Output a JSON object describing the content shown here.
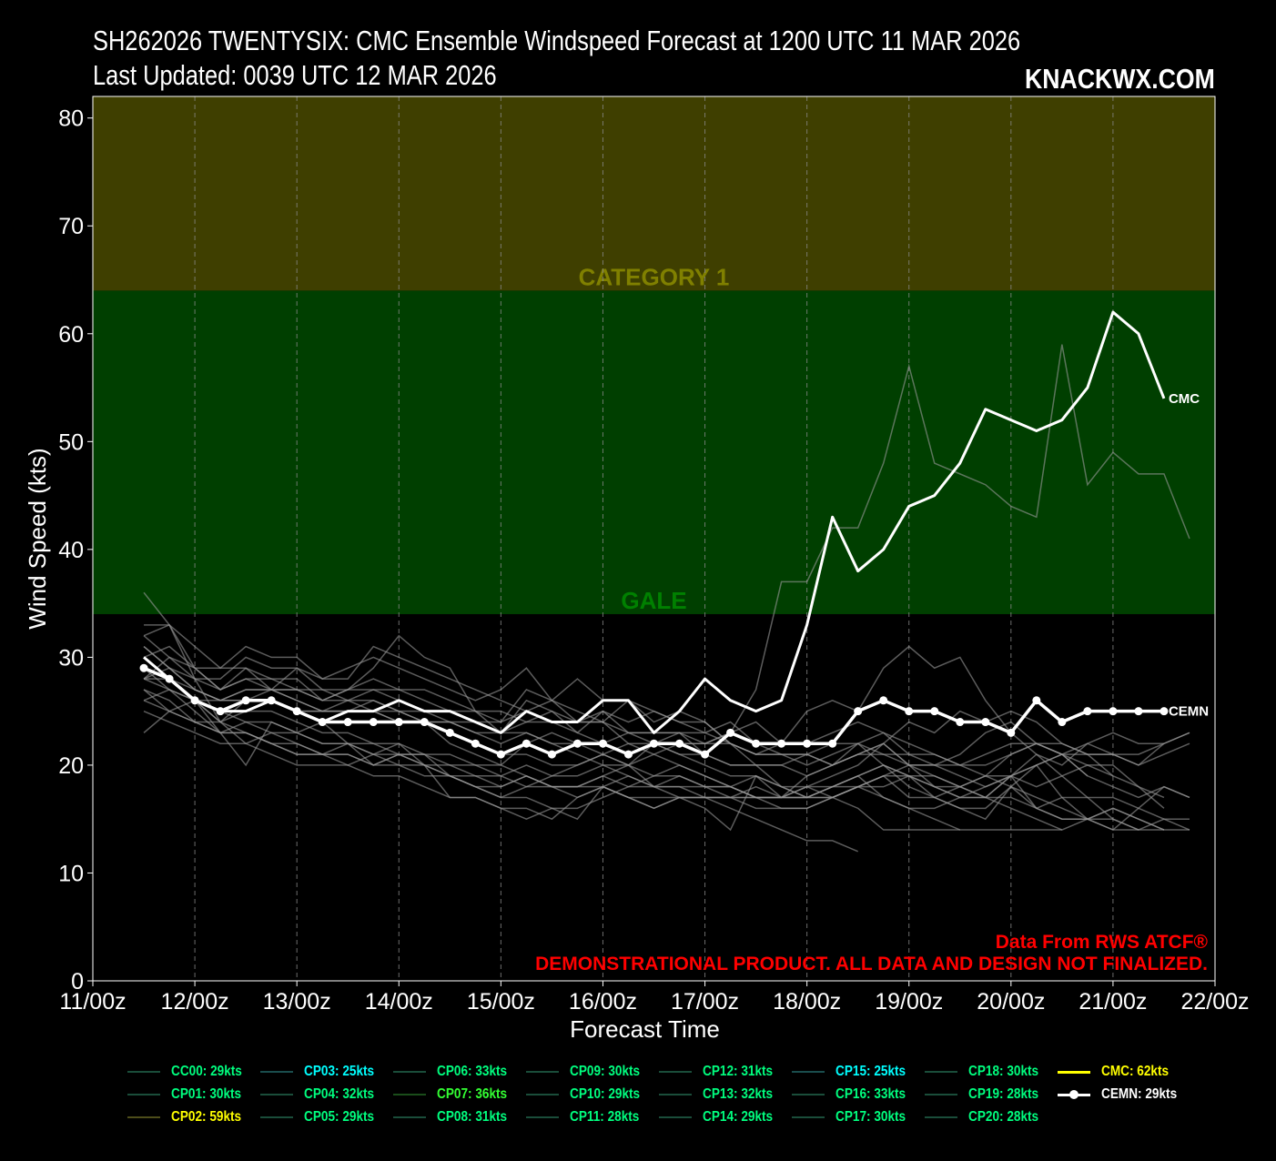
{
  "header": {
    "title_line1": "SH262026 TWENTYSIX: CMC Ensemble Windspeed Forecast at 1200 UTC 11 MAR 2026",
    "title_line2": "Last Updated: 0039 UTC 12 MAR 2026",
    "brand": "KNACKWX.COM"
  },
  "notes": {
    "source": "Data From RWS ATCF®",
    "disclaimer": "DEMONSTRATIONAL PRODUCT. ALL DATA AND DESIGN NOT FINALIZED."
  },
  "chart_data": {
    "type": "line",
    "xlabel": "Forecast Time",
    "ylabel": "Wind Speed (kts)",
    "x_ticks": [
      "11/00z",
      "12/00z",
      "13/00z",
      "14/00z",
      "15/00z",
      "16/00z",
      "17/00z",
      "18/00z",
      "19/00z",
      "20/00z",
      "21/00z",
      "22/00z"
    ],
    "xlim_hours": [
      0,
      264
    ],
    "ylim": [
      0,
      82
    ],
    "y_ticks": [
      0,
      10,
      20,
      30,
      40,
      50,
      60,
      70,
      80
    ],
    "grid": "vertical dashed",
    "bands": [
      {
        "name": "GALE",
        "from": 34,
        "to": 64,
        "color": "#003f00",
        "label_color": "#008000"
      },
      {
        "name": "CATEGORY 1",
        "from": 64,
        "to": 82,
        "color": "#3f3f00",
        "label_color": "#808000"
      }
    ],
    "x_hours": [
      12,
      18,
      24,
      30,
      36,
      42,
      48,
      54,
      60,
      66,
      72,
      78,
      84,
      90,
      96,
      102,
      108,
      114,
      120,
      126,
      132,
      138,
      144,
      150,
      156,
      162,
      168,
      174,
      180,
      186,
      192,
      198,
      204,
      210,
      216,
      222,
      228,
      234,
      240,
      246,
      252,
      258
    ],
    "main_series": [
      {
        "name": "CMC",
        "end_label": "CMC",
        "color": "#ffffff",
        "values": [
          30,
          28,
          26,
          25,
          25,
          26,
          25,
          24,
          25,
          25,
          26,
          25,
          25,
          24,
          23,
          25,
          24,
          24,
          26,
          26,
          23,
          25,
          28,
          26,
          25,
          26,
          33,
          43,
          38,
          40,
          44,
          45,
          48,
          53,
          52,
          51,
          52,
          55,
          62,
          60,
          54
        ]
      },
      {
        "name": "CEMN",
        "end_label": "CEMN",
        "color": "#ffffff",
        "markers": true,
        "values": [
          29,
          28,
          26,
          25,
          26,
          26,
          25,
          24,
          24,
          24,
          24,
          24,
          23,
          22,
          21,
          22,
          21,
          22,
          22,
          21,
          22,
          22,
          21,
          23,
          22,
          22,
          22,
          22,
          25,
          26,
          25,
          25,
          24,
          24,
          23,
          26,
          24,
          25,
          25,
          25,
          25
        ]
      }
    ],
    "member_series": [
      {
        "name": "m1",
        "values": [
          36,
          33,
          28,
          27,
          29,
          28,
          28,
          26,
          27,
          27,
          26,
          25,
          25,
          24,
          24,
          25,
          26,
          24,
          24,
          26,
          25,
          24,
          23,
          22,
          21,
          22,
          25,
          26,
          25,
          29,
          31,
          29,
          30,
          26,
          23,
          21,
          20,
          22,
          21,
          20,
          22,
          23
        ]
      },
      {
        "name": "m2",
        "values": [
          33,
          33,
          29,
          27,
          28,
          27,
          27,
          26,
          27,
          28,
          27,
          26,
          25,
          25,
          23,
          26,
          25,
          24,
          25,
          23,
          22,
          23,
          21,
          20,
          20,
          18,
          18,
          19,
          20,
          22,
          24,
          23,
          25,
          24,
          25,
          24,
          22,
          21,
          19
        ]
      },
      {
        "name": "m3",
        "values": [
          32,
          30,
          28,
          28,
          30,
          29,
          29,
          28,
          28,
          31,
          30,
          29,
          28,
          27,
          26,
          25,
          24,
          24,
          24,
          22,
          21,
          22,
          22,
          23,
          24,
          22,
          22,
          23,
          24,
          23,
          22,
          21,
          20,
          19,
          18,
          20,
          21,
          19,
          18,
          17,
          18,
          17
        ]
      },
      {
        "name": "m4",
        "values": [
          31,
          29,
          27,
          26,
          27,
          27,
          26,
          25,
          26,
          26,
          25,
          24,
          23,
          22,
          21,
          21,
          20,
          20,
          21,
          20,
          21,
          20,
          19,
          18,
          19,
          18,
          17,
          17,
          18,
          18,
          19,
          18,
          17,
          17,
          19,
          21,
          19,
          17,
          15,
          14,
          14
        ]
      },
      {
        "name": "m5",
        "values": [
          30,
          28,
          26,
          24,
          25,
          25,
          24,
          23,
          23,
          22,
          22,
          21,
          21,
          20,
          19,
          20,
          19,
          19,
          20,
          19,
          18,
          19,
          18,
          18,
          17,
          17,
          17,
          18,
          19,
          20,
          18,
          17,
          16,
          16,
          18,
          17,
          16,
          15,
          15,
          14
        ]
      },
      {
        "name": "m6",
        "values": [
          29,
          27,
          25,
          23,
          24,
          23,
          23,
          22,
          22,
          21,
          21,
          20,
          20,
          19,
          19,
          18,
          18,
          18,
          18,
          17,
          17,
          17,
          17,
          16,
          15,
          14,
          13,
          13,
          12
        ]
      },
      {
        "name": "m7",
        "values": [
          28,
          27,
          26,
          25,
          24,
          24,
          23,
          22,
          22,
          22,
          21,
          21,
          20,
          20,
          20,
          19,
          18,
          18,
          19,
          18,
          18,
          17,
          17,
          17,
          16,
          16,
          16,
          17,
          18,
          19,
          17,
          17,
          18,
          19,
          21,
          22,
          21,
          19
        ]
      },
      {
        "name": "m8",
        "values": [
          27,
          26,
          24,
          23,
          23,
          22,
          21,
          21,
          20,
          21,
          20,
          20,
          19,
          18,
          17,
          18,
          19,
          20,
          21,
          22,
          22,
          21,
          20,
          19,
          19,
          18,
          17,
          17,
          16,
          14,
          14,
          14,
          14
        ]
      },
      {
        "name": "m9",
        "values": [
          26,
          25,
          24,
          24,
          23,
          22,
          22,
          21,
          21,
          20,
          20,
          19,
          19,
          18,
          17,
          17,
          16,
          16,
          17,
          18,
          19,
          19,
          18,
          18,
          17,
          17,
          17,
          18,
          19,
          20,
          19,
          18,
          17,
          18,
          19,
          20,
          17,
          15,
          14,
          16,
          18,
          17
        ]
      },
      {
        "name": "m10",
        "values": [
          25,
          24,
          23,
          22,
          22,
          21,
          20,
          20,
          20,
          19,
          19,
          18,
          17,
          17,
          16,
          16,
          15,
          17,
          18,
          19,
          18,
          18,
          18,
          17,
          17,
          16,
          16,
          17,
          18,
          19,
          20,
          19,
          18,
          17,
          16,
          15,
          14,
          15,
          16,
          15,
          14,
          14
        ]
      },
      {
        "name": "m11",
        "values": [
          23,
          25,
          26,
          24,
          26,
          27,
          26,
          25,
          25,
          26,
          25,
          24,
          22,
          21,
          20,
          22,
          23,
          22,
          21,
          20,
          19,
          20,
          19,
          18,
          17,
          17,
          17,
          18,
          19,
          17,
          16,
          15,
          14,
          14,
          14,
          14,
          14
        ]
      },
      {
        "name": "m12",
        "values": [
          28,
          30,
          29,
          27,
          28,
          28,
          27,
          27,
          26,
          27,
          27,
          27,
          26,
          25,
          24,
          27,
          26,
          25,
          24,
          23,
          23,
          23,
          23,
          24,
          22,
          21,
          21,
          20,
          21,
          22,
          20,
          20,
          19,
          18,
          19,
          18,
          19,
          20,
          20,
          18,
          17
        ]
      },
      {
        "name": "m13",
        "values": [
          32,
          33,
          31,
          29,
          31,
          30,
          30,
          28,
          29,
          30,
          29,
          28,
          27,
          26,
          27,
          29,
          26,
          28,
          26,
          26,
          24,
          25,
          24,
          22,
          21,
          21,
          20,
          21,
          22,
          23,
          21,
          20,
          21,
          23,
          24,
          22,
          21,
          22,
          23,
          22,
          22
        ]
      },
      {
        "name": "m14",
        "values": [
          30,
          31,
          29,
          29,
          29,
          27,
          29,
          27,
          27,
          29,
          32,
          30,
          29,
          25,
          25,
          24,
          25,
          23,
          25,
          24,
          25,
          24,
          24,
          22,
          20,
          20,
          19,
          20,
          21,
          22,
          20,
          18,
          18,
          17,
          19,
          16,
          17,
          17,
          17,
          16,
          15,
          15
        ]
      },
      {
        "name": "m15",
        "values": [
          27,
          25,
          24,
          23,
          23,
          22,
          21,
          21,
          21,
          20,
          21,
          20,
          19,
          18,
          18,
          19,
          18,
          17,
          18,
          17,
          16,
          17,
          17,
          17,
          17,
          17,
          18,
          17,
          18,
          17,
          16,
          16,
          17,
          17,
          17,
          16,
          15,
          15,
          16,
          15,
          14
        ]
      },
      {
        "name": "m16",
        "values": [
          31,
          29,
          28,
          24,
          22,
          23,
          22,
          21,
          22,
          20,
          21,
          21,
          19,
          19,
          18,
          19,
          18,
          18,
          19,
          20,
          18,
          18,
          17,
          17,
          18,
          17,
          18,
          18,
          18,
          19,
          19,
          19,
          18,
          19,
          19,
          20,
          21,
          20,
          19,
          18,
          16
        ]
      },
      {
        "name": "m17",
        "values": [
          29,
          28,
          26,
          23,
          20,
          24,
          23,
          24,
          22,
          21,
          22,
          20,
          17,
          17,
          16,
          15,
          16,
          15,
          18,
          17,
          16,
          17,
          16,
          14,
          19,
          17,
          19,
          20,
          22,
          20,
          19,
          17,
          16,
          15,
          18,
          16,
          15,
          15,
          14,
          14,
          15,
          14
        ]
      },
      {
        "name": "m18",
        "values": [
          28,
          28,
          27,
          26,
          26,
          26,
          25,
          25,
          25,
          25,
          24,
          24,
          24,
          23,
          23,
          23,
          22,
          21,
          20,
          20,
          22,
          21,
          21,
          20,
          20,
          20,
          21,
          22,
          22,
          21,
          21,
          21,
          20,
          20,
          21,
          22,
          22,
          21,
          21,
          21,
          22,
          23
        ]
      },
      {
        "name": "m19",
        "values": [
          26,
          27,
          26,
          26,
          27,
          27,
          27,
          26,
          26,
          25,
          25,
          25,
          24,
          24,
          23,
          24,
          24,
          23,
          22,
          23,
          23,
          23,
          22,
          22,
          21,
          21,
          21,
          20,
          21,
          21,
          20,
          20,
          20,
          21,
          22,
          22,
          21,
          21,
          21,
          20,
          21,
          22
        ]
      },
      {
        "name": "m20",
        "values": [
          28,
          29,
          27,
          26,
          26,
          26,
          25,
          25,
          25,
          25,
          24,
          24,
          24,
          23,
          22,
          23,
          22,
          22,
          22,
          21,
          22,
          22,
          22,
          23,
          27,
          37,
          37,
          42,
          42,
          48,
          57,
          48,
          47,
          46,
          44,
          43,
          59,
          46,
          49,
          47,
          47,
          41
        ]
      }
    ],
    "legend": [
      {
        "label": "CC00: 29kts",
        "text_color": "#00ff7f",
        "line_color": "#1a4d3a"
      },
      {
        "label": "CP01: 30kts",
        "text_color": "#00ff7f",
        "line_color": "#1a4d3a"
      },
      {
        "label": "CP02: 59kts",
        "text_color": "#ffff00",
        "line_color": "#4d4d1a"
      },
      {
        "label": "CP03: 25kts",
        "text_color": "#00ffff",
        "line_color": "#1a4d4d"
      },
      {
        "label": "CP04: 32kts",
        "text_color": "#00ff7f",
        "line_color": "#1a4d3a"
      },
      {
        "label": "CP05: 29kts",
        "text_color": "#00ff7f",
        "line_color": "#1a4d3a"
      },
      {
        "label": "CP06: 33kts",
        "text_color": "#00ff7f",
        "line_color": "#1a4d3a"
      },
      {
        "label": "CP07: 36kts",
        "text_color": "#33ff33",
        "line_color": "#1a4d1a"
      },
      {
        "label": "CP08: 31kts",
        "text_color": "#00ff7f",
        "line_color": "#1a4d3a"
      },
      {
        "label": "CP09: 30kts",
        "text_color": "#00ff7f",
        "line_color": "#1a4d3a"
      },
      {
        "label": "CP10: 29kts",
        "text_color": "#00ff7f",
        "line_color": "#1a4d3a"
      },
      {
        "label": "CP11: 28kts",
        "text_color": "#00ff7f",
        "line_color": "#1a4d3a"
      },
      {
        "label": "CP12: 31kts",
        "text_color": "#00ff7f",
        "line_color": "#1a4d3a"
      },
      {
        "label": "CP13: 32kts",
        "text_color": "#00ff7f",
        "line_color": "#1a4d3a"
      },
      {
        "label": "CP14: 29kts",
        "text_color": "#00ff7f",
        "line_color": "#1a4d3a"
      },
      {
        "label": "CP15: 25kts",
        "text_color": "#00ffff",
        "line_color": "#1a4d4d"
      },
      {
        "label": "CP16: 33kts",
        "text_color": "#00ff7f",
        "line_color": "#1a4d3a"
      },
      {
        "label": "CP17: 30kts",
        "text_color": "#00ff7f",
        "line_color": "#1a4d3a"
      },
      {
        "label": "CP18: 30kts",
        "text_color": "#00ff7f",
        "line_color": "#1a4d3a"
      },
      {
        "label": "CP19: 28kts",
        "text_color": "#00ff7f",
        "line_color": "#1a4d3a"
      },
      {
        "label": "CP20: 28kts",
        "text_color": "#00ff7f",
        "line_color": "#1a4d3a"
      },
      {
        "label": "CMC: 62kts",
        "text_color": "#ffff00",
        "line_color": "#ffff00"
      },
      {
        "label": "CEMN: 29kts",
        "text_color": "#ffffff",
        "line_color": "#ffffff",
        "markers": true
      }
    ]
  }
}
